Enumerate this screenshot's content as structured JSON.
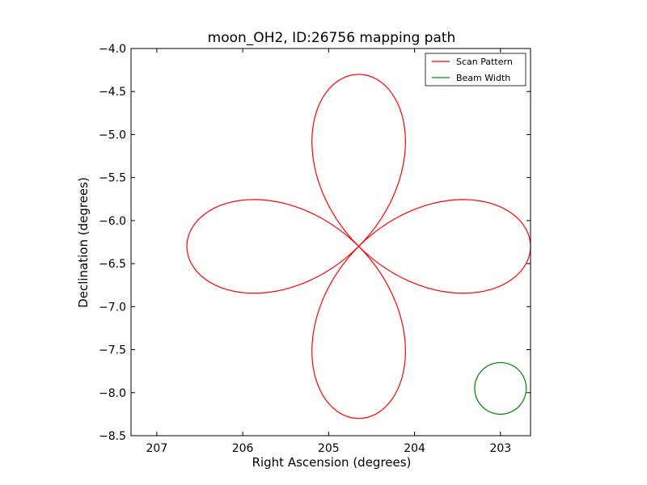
{
  "chart_data": {
    "type": "line",
    "title": "moon_OH2, ID:26756 mapping path",
    "xlabel": "Right Ascension (degrees)",
    "ylabel": "Declination (degrees)",
    "xlim": [
      207.3,
      202.65
    ],
    "ylim": [
      -8.5,
      -4.0
    ],
    "xticks": [
      207,
      206,
      205,
      204,
      203
    ],
    "xtick_labels": [
      "207",
      "206",
      "205",
      "204",
      "203"
    ],
    "yticks": [
      -4.0,
      -4.5,
      -5.0,
      -5.5,
      -6.0,
      -6.5,
      -7.0,
      -7.5,
      -8.0,
      -8.5
    ],
    "ytick_labels": [
      "−4.0",
      "−4.5",
      "−5.0",
      "−5.5",
      "−6.0",
      "−6.5",
      "−7.0",
      "−7.5",
      "−8.0",
      "−8.5"
    ],
    "grid": false,
    "legend_position": "top-right",
    "series": [
      {
        "name": "Scan Pattern",
        "color": "#ff0000",
        "kind": "rose-curve",
        "center": [
          204.65,
          -6.3
        ],
        "radius_deg": 2.0,
        "petals": 4
      },
      {
        "name": "Beam Width",
        "color": "#008000",
        "kind": "circle",
        "center": [
          203.0,
          -7.95
        ],
        "radius_deg": 0.3
      }
    ]
  }
}
